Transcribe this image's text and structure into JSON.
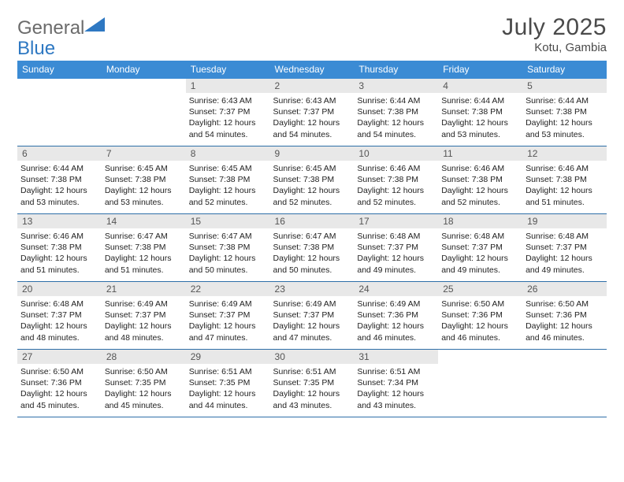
{
  "logo": {
    "text_general": "General",
    "text_blue": "Blue"
  },
  "title": "July 2025",
  "location": "Kotu, Gambia",
  "weekdays": [
    "Sunday",
    "Monday",
    "Tuesday",
    "Wednesday",
    "Thursday",
    "Friday",
    "Saturday"
  ],
  "colors": {
    "header_bg": "#3b8bd4",
    "header_text": "#ffffff",
    "daynum_bg": "#e8e8e8",
    "row_border": "#2e6fa8",
    "logo_gray": "#6b6b6b",
    "logo_blue": "#2e78c2"
  },
  "first_weekday_index": 2,
  "days": [
    {
      "n": 1,
      "sunrise": "6:43 AM",
      "sunset": "7:37 PM",
      "dl": "12 hours and 54 minutes."
    },
    {
      "n": 2,
      "sunrise": "6:43 AM",
      "sunset": "7:37 PM",
      "dl": "12 hours and 54 minutes."
    },
    {
      "n": 3,
      "sunrise": "6:44 AM",
      "sunset": "7:38 PM",
      "dl": "12 hours and 54 minutes."
    },
    {
      "n": 4,
      "sunrise": "6:44 AM",
      "sunset": "7:38 PM",
      "dl": "12 hours and 53 minutes."
    },
    {
      "n": 5,
      "sunrise": "6:44 AM",
      "sunset": "7:38 PM",
      "dl": "12 hours and 53 minutes."
    },
    {
      "n": 6,
      "sunrise": "6:44 AM",
      "sunset": "7:38 PM",
      "dl": "12 hours and 53 minutes."
    },
    {
      "n": 7,
      "sunrise": "6:45 AM",
      "sunset": "7:38 PM",
      "dl": "12 hours and 53 minutes."
    },
    {
      "n": 8,
      "sunrise": "6:45 AM",
      "sunset": "7:38 PM",
      "dl": "12 hours and 52 minutes."
    },
    {
      "n": 9,
      "sunrise": "6:45 AM",
      "sunset": "7:38 PM",
      "dl": "12 hours and 52 minutes."
    },
    {
      "n": 10,
      "sunrise": "6:46 AM",
      "sunset": "7:38 PM",
      "dl": "12 hours and 52 minutes."
    },
    {
      "n": 11,
      "sunrise": "6:46 AM",
      "sunset": "7:38 PM",
      "dl": "12 hours and 52 minutes."
    },
    {
      "n": 12,
      "sunrise": "6:46 AM",
      "sunset": "7:38 PM",
      "dl": "12 hours and 51 minutes."
    },
    {
      "n": 13,
      "sunrise": "6:46 AM",
      "sunset": "7:38 PM",
      "dl": "12 hours and 51 minutes."
    },
    {
      "n": 14,
      "sunrise": "6:47 AM",
      "sunset": "7:38 PM",
      "dl": "12 hours and 51 minutes."
    },
    {
      "n": 15,
      "sunrise": "6:47 AM",
      "sunset": "7:38 PM",
      "dl": "12 hours and 50 minutes."
    },
    {
      "n": 16,
      "sunrise": "6:47 AM",
      "sunset": "7:38 PM",
      "dl": "12 hours and 50 minutes."
    },
    {
      "n": 17,
      "sunrise": "6:48 AM",
      "sunset": "7:37 PM",
      "dl": "12 hours and 49 minutes."
    },
    {
      "n": 18,
      "sunrise": "6:48 AM",
      "sunset": "7:37 PM",
      "dl": "12 hours and 49 minutes."
    },
    {
      "n": 19,
      "sunrise": "6:48 AM",
      "sunset": "7:37 PM",
      "dl": "12 hours and 49 minutes."
    },
    {
      "n": 20,
      "sunrise": "6:48 AM",
      "sunset": "7:37 PM",
      "dl": "12 hours and 48 minutes."
    },
    {
      "n": 21,
      "sunrise": "6:49 AM",
      "sunset": "7:37 PM",
      "dl": "12 hours and 48 minutes."
    },
    {
      "n": 22,
      "sunrise": "6:49 AM",
      "sunset": "7:37 PM",
      "dl": "12 hours and 47 minutes."
    },
    {
      "n": 23,
      "sunrise": "6:49 AM",
      "sunset": "7:37 PM",
      "dl": "12 hours and 47 minutes."
    },
    {
      "n": 24,
      "sunrise": "6:49 AM",
      "sunset": "7:36 PM",
      "dl": "12 hours and 46 minutes."
    },
    {
      "n": 25,
      "sunrise": "6:50 AM",
      "sunset": "7:36 PM",
      "dl": "12 hours and 46 minutes."
    },
    {
      "n": 26,
      "sunrise": "6:50 AM",
      "sunset": "7:36 PM",
      "dl": "12 hours and 46 minutes."
    },
    {
      "n": 27,
      "sunrise": "6:50 AM",
      "sunset": "7:36 PM",
      "dl": "12 hours and 45 minutes."
    },
    {
      "n": 28,
      "sunrise": "6:50 AM",
      "sunset": "7:35 PM",
      "dl": "12 hours and 45 minutes."
    },
    {
      "n": 29,
      "sunrise": "6:51 AM",
      "sunset": "7:35 PM",
      "dl": "12 hours and 44 minutes."
    },
    {
      "n": 30,
      "sunrise": "6:51 AM",
      "sunset": "7:35 PM",
      "dl": "12 hours and 43 minutes."
    },
    {
      "n": 31,
      "sunrise": "6:51 AM",
      "sunset": "7:34 PM",
      "dl": "12 hours and 43 minutes."
    }
  ],
  "labels": {
    "sunrise": "Sunrise:",
    "sunset": "Sunset:",
    "daylight": "Daylight:"
  }
}
